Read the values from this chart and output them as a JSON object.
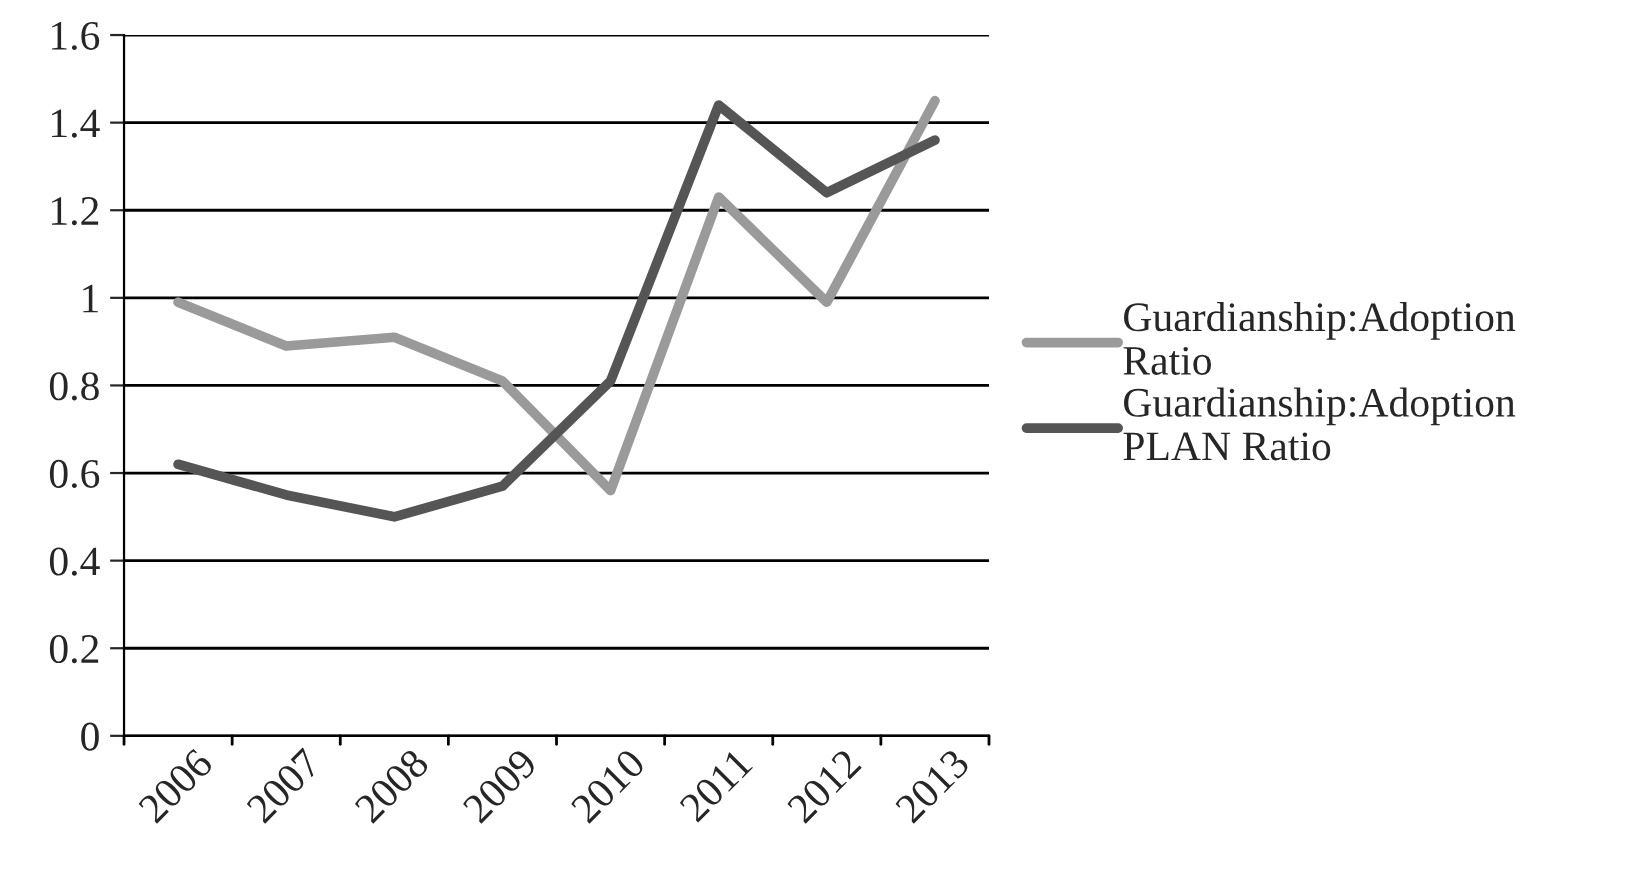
{
  "chart_data": {
    "type": "line",
    "categories": [
      "2006",
      "2007",
      "2008",
      "2009",
      "2010",
      "2011",
      "2012",
      "2013"
    ],
    "series": [
      {
        "name": "Guardianship:Adoption Ratio",
        "color": "#9a9a9a",
        "values": [
          0.99,
          0.89,
          0.91,
          0.81,
          0.56,
          1.23,
          0.99,
          1.45
        ]
      },
      {
        "name": "Guardianship:Adoption PLAN Ratio",
        "color": "#555555",
        "values": [
          0.62,
          0.55,
          0.5,
          0.57,
          0.81,
          1.44,
          1.24,
          1.36
        ]
      }
    ],
    "ylim": [
      0,
      1.6
    ],
    "yticks": [
      0,
      0.2,
      0.4,
      0.6,
      0.8,
      1,
      1.2,
      1.4,
      1.6
    ],
    "grid": "y",
    "legend": "right",
    "marker": "none",
    "line_style": "solid"
  }
}
